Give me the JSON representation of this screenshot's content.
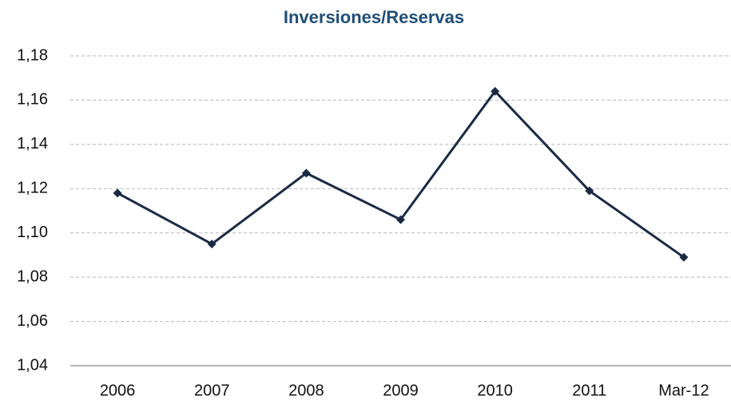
{
  "chart_data": {
    "type": "line",
    "title": "Inversiones/Reservas",
    "categories": [
      "2006",
      "2007",
      "2008",
      "2009",
      "2010",
      "2011",
      "Mar-12"
    ],
    "series": [
      {
        "name": "Inversiones/Reservas",
        "color": "#1a2a44",
        "values": [
          1.118,
          1.095,
          1.127,
          1.106,
          1.164,
          1.119,
          1.089
        ]
      }
    ],
    "ylim": [
      1.04,
      1.18
    ],
    "yticks": [
      {
        "value": 1.04,
        "label": "1,04"
      },
      {
        "value": 1.06,
        "label": "1,06"
      },
      {
        "value": 1.08,
        "label": "1,08"
      },
      {
        "value": 1.1,
        "label": "1,10"
      },
      {
        "value": 1.12,
        "label": "1,12"
      },
      {
        "value": 1.14,
        "label": "1,14"
      },
      {
        "value": 1.16,
        "label": "1,16"
      },
      {
        "value": 1.18,
        "label": "1,18"
      }
    ],
    "grid": true
  }
}
